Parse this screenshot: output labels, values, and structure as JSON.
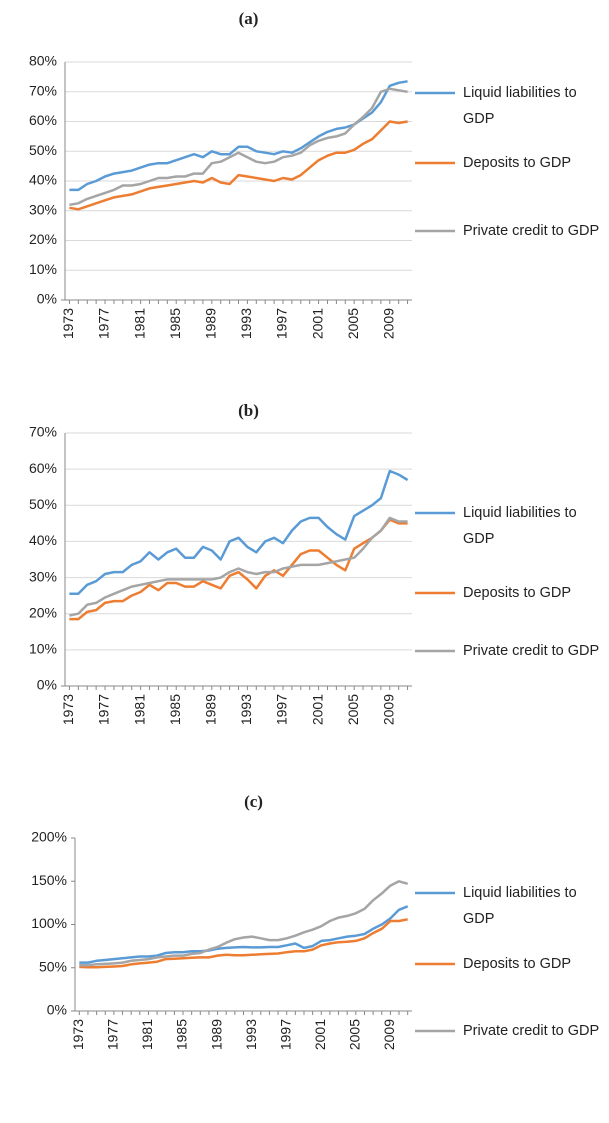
{
  "chart_data": [
    {
      "type": "line",
      "title": "(a)",
      "x": [
        1973,
        1974,
        1975,
        1976,
        1977,
        1978,
        1979,
        1980,
        1981,
        1982,
        1983,
        1984,
        1985,
        1986,
        1987,
        1988,
        1989,
        1990,
        1991,
        1992,
        1993,
        1994,
        1995,
        1996,
        1997,
        1998,
        1999,
        2000,
        2001,
        2002,
        2003,
        2004,
        2005,
        2006,
        2007,
        2008,
        2009,
        2010,
        2011
      ],
      "xlim": [
        1972.5,
        2011.5
      ],
      "xticks": [
        1973,
        1977,
        1981,
        1985,
        1989,
        1993,
        1997,
        2001,
        2005,
        2009
      ],
      "ylim": [
        0,
        80
      ],
      "yticks": [
        {
          "value": 0,
          "label": "0%"
        },
        {
          "value": 10,
          "label": "10%"
        },
        {
          "value": 20,
          "label": "20%"
        },
        {
          "value": 30,
          "label": "30%"
        },
        {
          "value": 40,
          "label": "40%"
        },
        {
          "value": 50,
          "label": "50%"
        },
        {
          "value": 60,
          "label": "60%"
        },
        {
          "value": 70,
          "label": "70%"
        },
        {
          "value": 80,
          "label": "80%"
        }
      ],
      "grid": true,
      "legend": "right",
      "series": [
        {
          "name": "Liquid liabilities to GDP",
          "color": "#5b9bd5",
          "values": [
            37,
            37,
            39,
            40,
            41.5,
            42.5,
            43,
            43.5,
            44.5,
            45.5,
            46,
            46,
            47,
            48,
            49,
            48,
            50,
            49,
            49,
            51.5,
            51.5,
            50,
            49.5,
            49,
            50,
            49.5,
            51,
            53,
            55,
            56.5,
            57.5,
            58,
            59,
            61,
            63,
            66.5,
            72,
            73,
            73.5
          ]
        },
        {
          "name": "Deposits to GDP",
          "color": "#ed7d31",
          "values": [
            31,
            30.5,
            31.5,
            32.5,
            33.5,
            34.5,
            35,
            35.5,
            36.5,
            37.5,
            38,
            38.5,
            39,
            39.5,
            40,
            39.5,
            41,
            39.5,
            39,
            42,
            41.5,
            41,
            40.5,
            40,
            41,
            40.5,
            42,
            44.5,
            47,
            48.5,
            49.5,
            49.5,
            50.5,
            52.5,
            54,
            57,
            60,
            59.5,
            60
          ]
        },
        {
          "name": "Private credit to GDP",
          "color": "#a5a5a5",
          "values": [
            32,
            32.5,
            34,
            35,
            36,
            37,
            38.5,
            38.5,
            39,
            40,
            41,
            41,
            41.5,
            41.5,
            42.5,
            42.5,
            46,
            46.5,
            48,
            49.5,
            48,
            46.5,
            46,
            46.5,
            48,
            48.5,
            49.5,
            52,
            53.5,
            54.5,
            55,
            56,
            59,
            61.5,
            64.5,
            70,
            71,
            70.5,
            70
          ]
        }
      ]
    },
    {
      "type": "line",
      "title": "(b)",
      "x": [
        1973,
        1974,
        1975,
        1976,
        1977,
        1978,
        1979,
        1980,
        1981,
        1982,
        1983,
        1984,
        1985,
        1986,
        1987,
        1988,
        1989,
        1990,
        1991,
        1992,
        1993,
        1994,
        1995,
        1996,
        1997,
        1998,
        1999,
        2000,
        2001,
        2002,
        2003,
        2004,
        2005,
        2006,
        2007,
        2008,
        2009,
        2010,
        2011
      ],
      "xlim": [
        1972.5,
        2011.5
      ],
      "xticks": [
        1973,
        1977,
        1981,
        1985,
        1989,
        1993,
        1997,
        2001,
        2005,
        2009
      ],
      "ylim": [
        0,
        70
      ],
      "yticks": [
        {
          "value": 0,
          "label": "0%"
        },
        {
          "value": 10,
          "label": "10%"
        },
        {
          "value": 20,
          "label": "20%"
        },
        {
          "value": 30,
          "label": "30%"
        },
        {
          "value": 40,
          "label": "40%"
        },
        {
          "value": 50,
          "label": "50%"
        },
        {
          "value": 60,
          "label": "60%"
        },
        {
          "value": 70,
          "label": "70%"
        }
      ],
      "grid": true,
      "legend": "right",
      "series": [
        {
          "name": "Liquid liabilities to GDP",
          "color": "#5b9bd5",
          "values": [
            25.5,
            25.5,
            28,
            29,
            31,
            31.5,
            31.5,
            33.5,
            34.5,
            37,
            35,
            37,
            38,
            35.5,
            35.5,
            38.5,
            37.5,
            35,
            40,
            41,
            38.5,
            37,
            40,
            41,
            39.5,
            43,
            45.5,
            46.5,
            46.5,
            44,
            42,
            40.5,
            47,
            48.5,
            50,
            52,
            59.5,
            58.5,
            57
          ]
        },
        {
          "name": "Deposits to GDP",
          "color": "#ed7d31",
          "values": [
            18.5,
            18.5,
            20.5,
            21,
            23,
            23.5,
            23.5,
            25,
            26,
            28,
            26.5,
            28.5,
            28.5,
            27.5,
            27.5,
            29,
            28,
            27,
            30.5,
            31.5,
            29.5,
            27,
            30.5,
            32,
            30.5,
            33.5,
            36.5,
            37.5,
            37.5,
            35.5,
            33.5,
            32,
            38,
            39.5,
            41,
            43,
            46,
            45,
            45
          ]
        },
        {
          "name": "Private credit to GDP",
          "color": "#a5a5a5",
          "values": [
            19.5,
            20,
            22.5,
            23,
            24.5,
            25.5,
            26.5,
            27.5,
            28,
            28.5,
            29,
            29.5,
            29.5,
            29.5,
            29.5,
            29.5,
            29.5,
            30,
            31.5,
            32.5,
            31.5,
            31,
            31.5,
            31.5,
            32.5,
            33,
            33.5,
            33.5,
            33.5,
            34,
            34.5,
            35,
            35.5,
            38,
            41,
            43,
            46.5,
            45.5,
            45.5
          ]
        }
      ]
    },
    {
      "type": "line",
      "title": "(c)",
      "x": [
        1973,
        1974,
        1975,
        1976,
        1977,
        1978,
        1979,
        1980,
        1981,
        1982,
        1983,
        1984,
        1985,
        1986,
        1987,
        1988,
        1989,
        1990,
        1991,
        1992,
        1993,
        1994,
        1995,
        1996,
        1997,
        1998,
        1999,
        2000,
        2001,
        2002,
        2003,
        2004,
        2005,
        2006,
        2007,
        2008,
        2009,
        2010,
        2011
      ],
      "xlim": [
        1972.5,
        2011.5
      ],
      "xticks": [
        1973,
        1977,
        1981,
        1985,
        1989,
        1993,
        1997,
        2001,
        2005,
        2009
      ],
      "ylim": [
        0,
        200
      ],
      "yticks": [
        {
          "value": 0,
          "label": "0%"
        },
        {
          "value": 50,
          "label": "50%"
        },
        {
          "value": 100,
          "label": "100%"
        },
        {
          "value": 150,
          "label": "150%"
        },
        {
          "value": 200,
          "label": "200%"
        }
      ],
      "grid": false,
      "legend": "right",
      "series": [
        {
          "name": "Liquid liabilities to GDP",
          "color": "#5b9bd5",
          "values": [
            56,
            56,
            58,
            59,
            60,
            61,
            62,
            63,
            63,
            64,
            67,
            68,
            68,
            69,
            69,
            70,
            72,
            73,
            73.5,
            74,
            73.5,
            73.5,
            74,
            74,
            76,
            78,
            73,
            75,
            81,
            82,
            84,
            86,
            87,
            89,
            95,
            100,
            107,
            117,
            121
          ]
        },
        {
          "name": "Deposits to GDP",
          "color": "#ed7d31",
          "values": [
            51,
            50.5,
            50.5,
            51,
            51.5,
            52,
            54,
            55,
            56,
            57,
            60,
            60.5,
            61,
            61.5,
            62,
            62,
            64,
            65,
            64.5,
            64.5,
            65,
            65.5,
            66,
            66.5,
            68,
            69,
            69,
            71,
            76,
            78,
            79.5,
            80,
            81,
            84,
            90,
            95,
            104,
            104,
            106
          ]
        },
        {
          "name": "Private credit to GDP",
          "color": "#a5a5a5",
          "values": [
            53,
            53,
            54,
            54.5,
            55,
            56,
            58,
            59,
            60,
            62,
            63,
            64,
            64,
            66,
            67,
            71,
            74,
            79,
            83,
            85,
            86,
            84,
            82,
            82,
            84,
            87,
            91,
            94,
            98,
            104,
            108,
            110,
            113,
            118,
            128,
            136,
            145,
            150,
            147
          ]
        }
      ]
    }
  ]
}
